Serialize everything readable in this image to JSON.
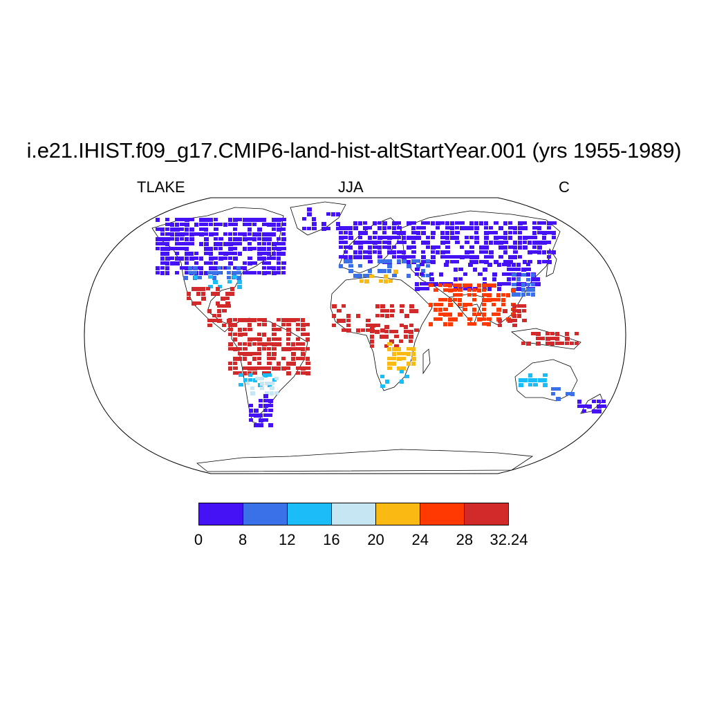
{
  "title": "i.e21.IHIST.f09_g17.CMIP6-land-hist-altStartYear.001 (yrs 1955-1989)",
  "variable": "TLAKE",
  "season": "JJA",
  "units": "C",
  "map": {
    "projection": "Robinson",
    "fill_note": "lake temperature over land grid cells; blank where no data",
    "colors": {
      "land_outline": "#000000",
      "background": "#ffffff"
    }
  },
  "colorbar": {
    "colors": [
      "#4412f5",
      "#3a70e8",
      "#1abdf7",
      "#c6e6f4",
      "#fbb913",
      "#fe3a02",
      "#d22a2a"
    ],
    "labels": [
      "0",
      "8",
      "12",
      "16",
      "20",
      "24",
      "28",
      "32.24"
    ]
  }
}
